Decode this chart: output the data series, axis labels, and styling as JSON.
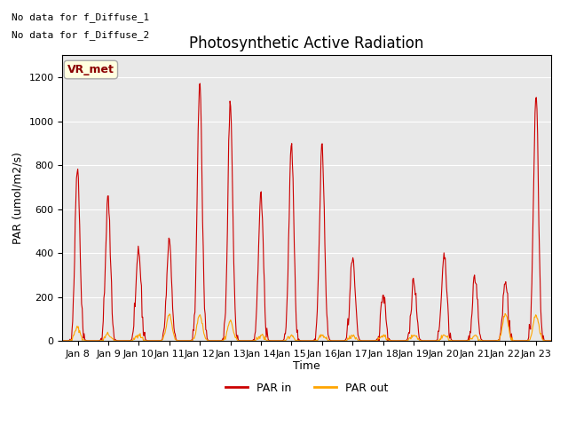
{
  "title": "Photosynthetic Active Radiation",
  "ylabel": "PAR (umol/m2/s)",
  "xlabel": "Time",
  "ylim": [
    0,
    1300
  ],
  "background_color": "#e8e8e8",
  "annotation_line1": "No data for f_Diffuse_1",
  "annotation_line2": "No data for f_Diffuse_2",
  "legend_label1": "PAR in",
  "legend_label2": "PAR out",
  "vr_met_label": "VR_met",
  "num_days": 16,
  "x_tick_labels": [
    "Jan 8",
    "Jan 9",
    "Jan 10",
    "Jan 11",
    "Jan 12",
    "Jan 13",
    "Jan 14",
    "Jan 15",
    "Jan 16",
    "Jan 17",
    "Jan 18",
    "Jan 19",
    "Jan 20",
    "Jan 21",
    "Jan 22",
    "Jan 23"
  ],
  "par_in_day_peaks": [
    800,
    650,
    420,
    450,
    1180,
    1090,
    670,
    900,
    900,
    370,
    210,
    270,
    410,
    290,
    280,
    1130
  ],
  "par_out_day_peaks": [
    60,
    30,
    30,
    120,
    120,
    90,
    25,
    25,
    25,
    25,
    25,
    25,
    25,
    25,
    120,
    120
  ],
  "color_par_in": "#cc0000",
  "color_par_out": "#ffa500",
  "yticks": [
    0,
    200,
    400,
    600,
    800,
    1000,
    1200
  ]
}
